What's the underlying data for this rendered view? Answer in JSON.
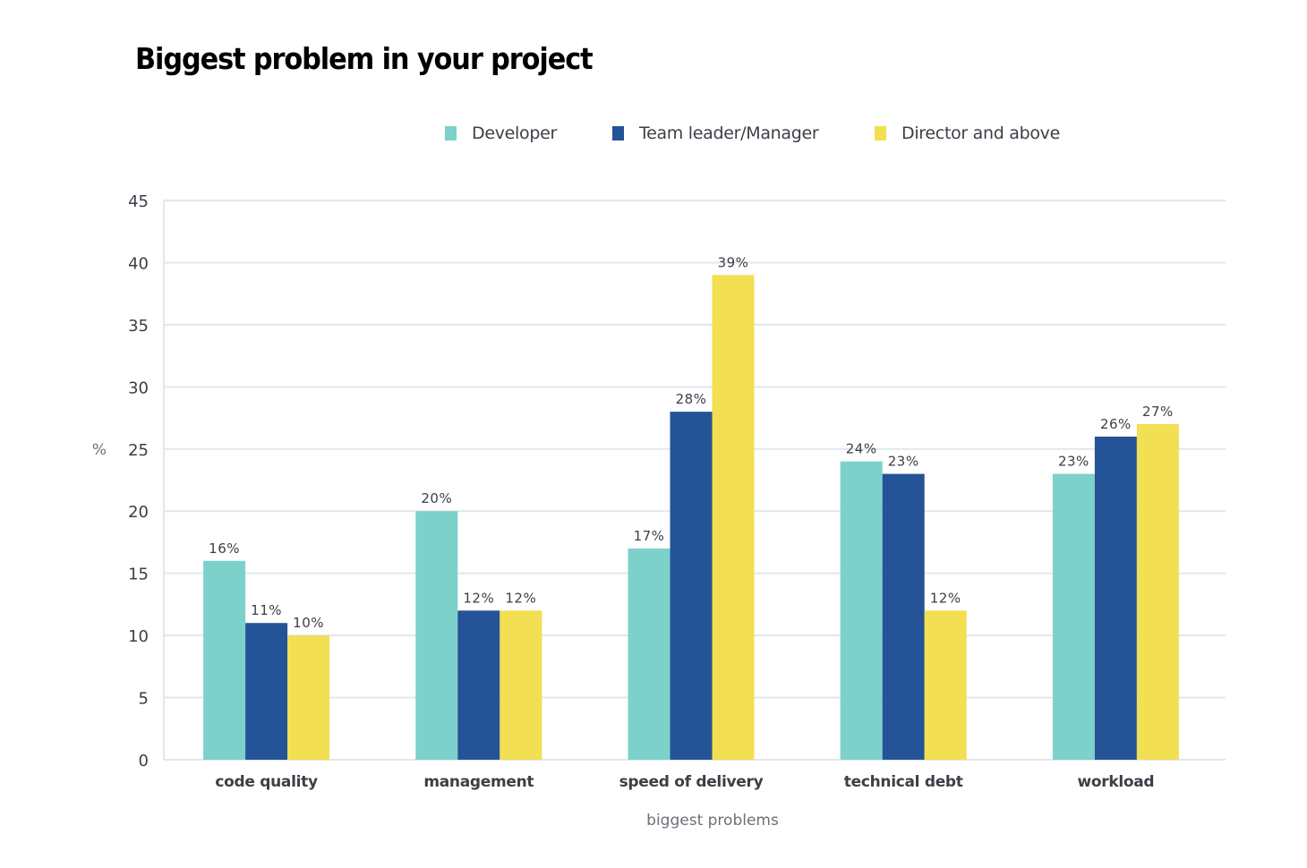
{
  "chart_data": {
    "type": "bar",
    "title": "Biggest problem in your project",
    "xlabel": "biggest problems",
    "ylabel": "%",
    "ylim": [
      0,
      45
    ],
    "yticks": [
      0,
      5,
      10,
      15,
      20,
      25,
      30,
      35,
      40,
      45
    ],
    "grid": true,
    "legend_position": "top-center",
    "categories": [
      "code quality",
      "management",
      "speed of delivery",
      "technical debt",
      "workload"
    ],
    "series": [
      {
        "name": "Developer",
        "color": "#7dd1cb",
        "values": [
          16,
          20,
          17,
          24,
          23
        ]
      },
      {
        "name": "Team leader/Manager",
        "color": "#245397",
        "values": [
          11,
          12,
          28,
          23,
          26
        ]
      },
      {
        "name": "Director and above",
        "color": "#f2df52",
        "values": [
          10,
          12,
          39,
          12,
          27
        ]
      }
    ],
    "value_label_suffix": "%"
  }
}
